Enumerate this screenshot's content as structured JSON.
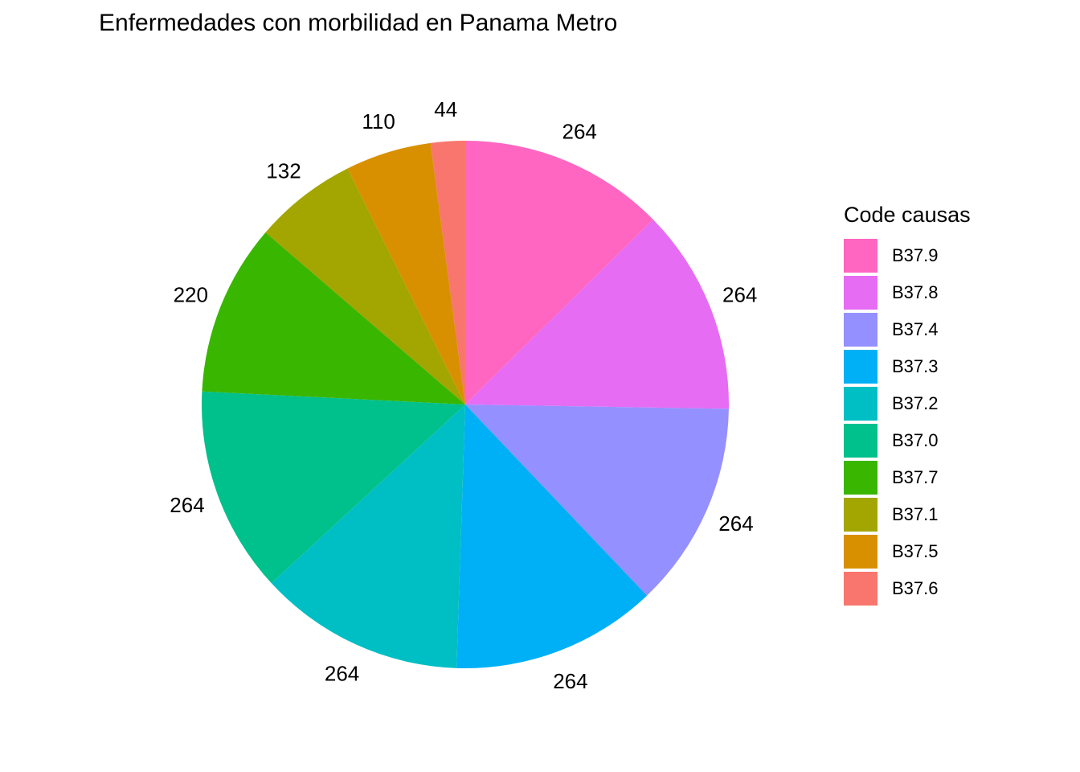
{
  "chart_data": {
    "type": "pie",
    "title": "Enfermedades con morbilidad en Panama Metro",
    "legend_title": "Code causas",
    "legend_position": "right",
    "direction": "clockwise",
    "start": "top",
    "slices": [
      {
        "label": "B37.9",
        "value": 264,
        "color": "#FF66C1"
      },
      {
        "label": "B37.8",
        "value": 264,
        "color": "#E66CF4"
      },
      {
        "label": "B37.4",
        "value": 264,
        "color": "#9590FF"
      },
      {
        "label": "B37.3",
        "value": 264,
        "color": "#00B0F6"
      },
      {
        "label": "B37.2",
        "value": 264,
        "color": "#00BFC4"
      },
      {
        "label": "B37.0",
        "value": 264,
        "color": "#00C08B"
      },
      {
        "label": "B37.7",
        "value": 220,
        "color": "#39B600"
      },
      {
        "label": "B37.1",
        "value": 132,
        "color": "#A3A500"
      },
      {
        "label": "B37.5",
        "value": 110,
        "color": "#D89000"
      },
      {
        "label": "B37.6",
        "value": 44,
        "color": "#F8766D"
      }
    ]
  }
}
